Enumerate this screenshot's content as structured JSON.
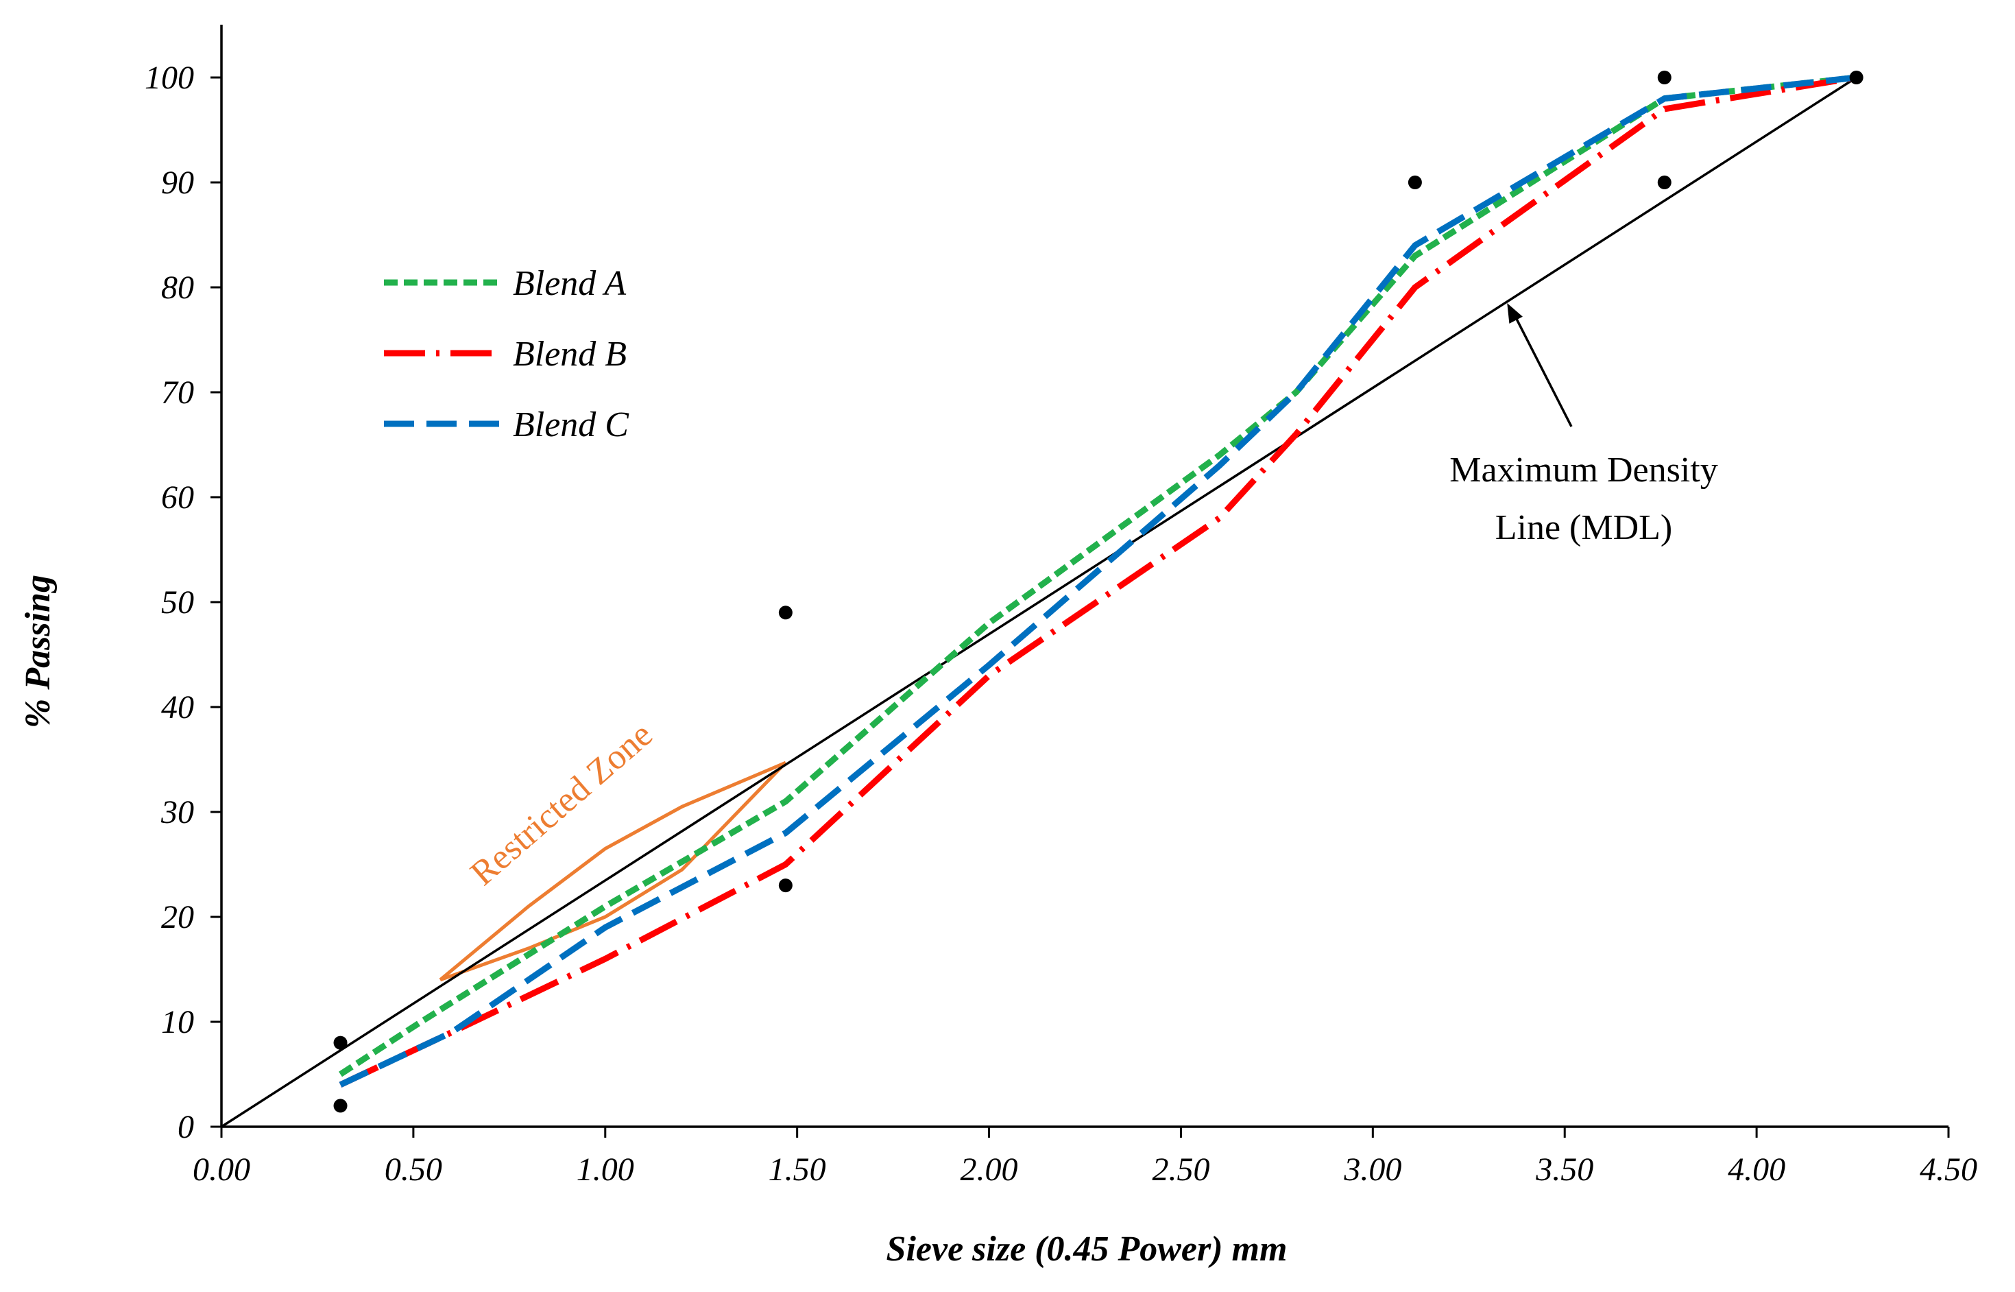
{
  "chart_data": {
    "type": "line",
    "title": "",
    "xlabel": "Sieve size (0.45 Power) mm",
    "ylabel": "% Passing",
    "xlim": [
      0,
      4.5
    ],
    "ylim": [
      0,
      100
    ],
    "x_ticks": [
      "0.00",
      "0.50",
      "1.00",
      "1.50",
      "2.00",
      "2.50",
      "3.00",
      "3.50",
      "4.00",
      "4.50"
    ],
    "y_ticks": [
      "0",
      "10",
      "20",
      "30",
      "40",
      "50",
      "60",
      "70",
      "80",
      "90",
      "100"
    ],
    "grid": false,
    "legend_position": "upper-left",
    "series": [
      {
        "name": "Blend A",
        "color": "#22b14c",
        "dash": "short-dash",
        "points": [
          [
            0.31,
            5
          ],
          [
            0.52,
            10
          ],
          [
            1.0,
            21
          ],
          [
            1.47,
            31
          ],
          [
            2.0,
            48
          ],
          [
            2.6,
            64
          ],
          [
            2.8,
            70
          ],
          [
            3.11,
            83
          ],
          [
            3.76,
            98
          ],
          [
            4.26,
            100
          ]
        ]
      },
      {
        "name": "Blend B",
        "color": "#ff0000",
        "dash": "long-dash-dot",
        "points": [
          [
            0.31,
            4
          ],
          [
            0.6,
            9
          ],
          [
            1.0,
            16
          ],
          [
            1.47,
            25
          ],
          [
            2.0,
            43
          ],
          [
            2.6,
            58
          ],
          [
            2.8,
            66
          ],
          [
            3.11,
            80
          ],
          [
            3.76,
            97
          ],
          [
            4.26,
            100
          ]
        ]
      },
      {
        "name": "Blend C",
        "color": "#0070c0",
        "dash": "long-dash",
        "points": [
          [
            0.31,
            4
          ],
          [
            0.6,
            9
          ],
          [
            1.0,
            19
          ],
          [
            1.47,
            28
          ],
          [
            2.0,
            44
          ],
          [
            2.6,
            63
          ],
          [
            2.8,
            70
          ],
          [
            3.11,
            84
          ],
          [
            3.76,
            98
          ],
          [
            4.26,
            100
          ]
        ]
      }
    ],
    "mdl_line": {
      "label": "Maximum Density Line (MDL)",
      "points": [
        [
          0,
          0
        ],
        [
          4.26,
          100
        ]
      ]
    },
    "control_points": [
      [
        0.31,
        2
      ],
      [
        0.31,
        8
      ],
      [
        1.47,
        23
      ],
      [
        1.47,
        49
      ],
      [
        3.11,
        90
      ],
      [
        3.76,
        90
      ],
      [
        3.76,
        100
      ],
      [
        4.26,
        100
      ]
    ],
    "restricted_zone": {
      "label": "Restricted Zone",
      "color": "#ed7d31",
      "upper": [
        [
          0.57,
          14
        ],
        [
          0.8,
          21
        ],
        [
          1.0,
          26.5
        ],
        [
          1.2,
          30.5
        ],
        [
          1.47,
          34.7
        ]
      ],
      "lower": [
        [
          0.57,
          14
        ],
        [
          0.8,
          17
        ],
        [
          1.0,
          20
        ],
        [
          1.2,
          24.5
        ],
        [
          1.47,
          34.7
        ]
      ]
    },
    "annotations": [
      {
        "text_line1": "Maximum Density",
        "text_line2": "Line (MDL)",
        "arrow_to": [
          3.35,
          78.5
        ]
      }
    ]
  }
}
